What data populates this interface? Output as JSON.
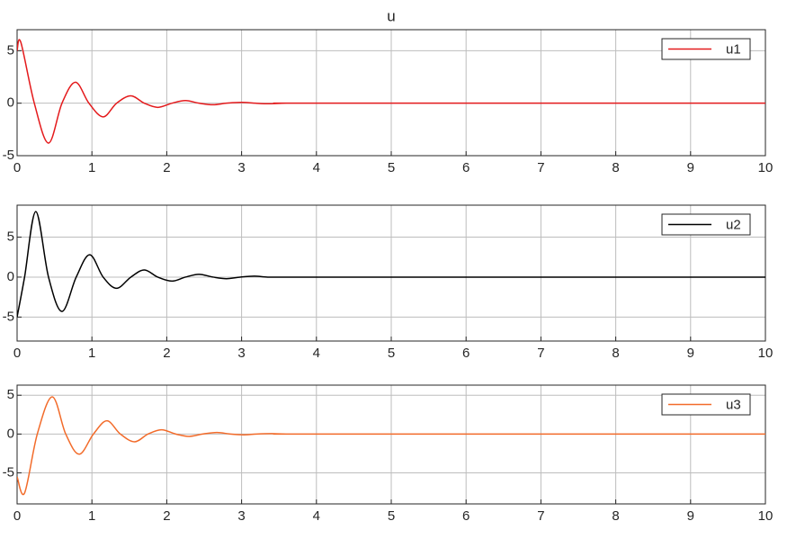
{
  "chart_data": [
    {
      "type": "line",
      "title": "u",
      "x": [
        0,
        0.05,
        0.23,
        0.42,
        0.6,
        0.78,
        0.96,
        1.15,
        1.33,
        1.52,
        1.7,
        1.88,
        2.07,
        2.25,
        2.43,
        2.62,
        2.8,
        3.0,
        3.18,
        3.37,
        3.6,
        4,
        10
      ],
      "series": [
        {
          "name": "u1",
          "color": "#e41a1c",
          "values": [
            5.0,
            5.8,
            0,
            -3.8,
            0,
            2.0,
            0,
            -1.3,
            0,
            0.7,
            0,
            -0.4,
            0,
            0.25,
            0,
            -0.15,
            0,
            0.08,
            0,
            -0.05,
            0,
            0,
            0
          ]
        }
      ],
      "xlim": [
        0,
        10
      ],
      "xticks": [
        0,
        1,
        2,
        3,
        4,
        5,
        6,
        7,
        8,
        9,
        10
      ],
      "ylim": [
        -5,
        7
      ],
      "yticks": [
        -5,
        0,
        5
      ],
      "grid": true,
      "legend": "upper right"
    },
    {
      "type": "line",
      "x": [
        0,
        0.1,
        0.25,
        0.42,
        0.6,
        0.79,
        0.97,
        1.15,
        1.33,
        1.52,
        1.7,
        1.88,
        2.07,
        2.25,
        2.43,
        2.62,
        2.8,
        2.98,
        3.17,
        3.35,
        3.6,
        4,
        10
      ],
      "series": [
        {
          "name": "u2",
          "color": "#000000",
          "values": [
            -5,
            0,
            8.2,
            0,
            -4.3,
            0,
            2.8,
            0,
            -1.4,
            0,
            0.9,
            0,
            -0.5,
            0,
            0.35,
            0,
            -0.2,
            0,
            0.12,
            0,
            0,
            0,
            0
          ]
        }
      ],
      "xlim": [
        0,
        10
      ],
      "xticks": [
        0,
        1,
        2,
        3,
        4,
        5,
        6,
        7,
        8,
        9,
        10
      ],
      "ylim": [
        -8,
        9
      ],
      "yticks": [
        -5,
        0,
        5
      ],
      "grid": true,
      "legend": "upper right"
    },
    {
      "type": "line",
      "x": [
        0,
        0.1,
        0.27,
        0.47,
        0.65,
        0.83,
        1.02,
        1.2,
        1.38,
        1.57,
        1.75,
        1.93,
        2.12,
        2.3,
        2.48,
        2.67,
        2.85,
        3.03,
        3.2,
        3.4,
        3.6,
        4,
        10
      ],
      "series": [
        {
          "name": "u3",
          "color": "#f26b2a",
          "values": [
            -5.5,
            -7.6,
            0,
            4.8,
            0,
            -2.6,
            0,
            1.7,
            0,
            -1.0,
            0,
            0.55,
            0,
            -0.3,
            0,
            0.2,
            0,
            -0.1,
            0,
            0.05,
            0,
            0,
            0
          ]
        }
      ],
      "xlim": [
        0,
        10
      ],
      "xticks": [
        0,
        1,
        2,
        3,
        4,
        5,
        6,
        7,
        8,
        9,
        10
      ],
      "ylim": [
        -9,
        6.3
      ],
      "yticks": [
        -5,
        0,
        5
      ],
      "grid": true,
      "legend": "upper right"
    }
  ]
}
